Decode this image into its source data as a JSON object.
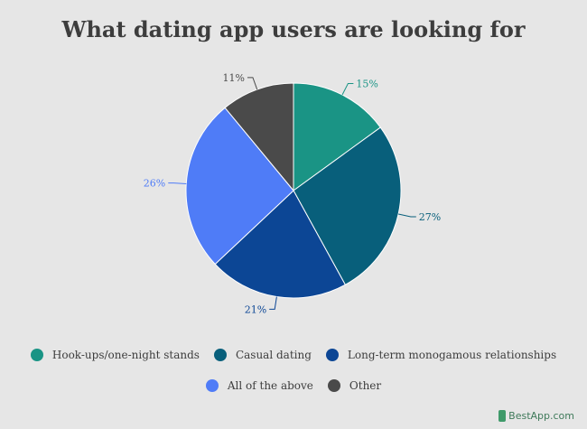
{
  "chart_data": {
    "type": "pie",
    "title": "What dating app users are looking for",
    "slices": [
      {
        "label": "Hook-ups/one-night stands",
        "value": 15,
        "display": "15%",
        "color": "#1a9485"
      },
      {
        "label": "Casual dating",
        "value": 27,
        "display": "27%",
        "color": "#085f7b"
      },
      {
        "label": "Long-term monogamous relationships",
        "value": 21,
        "display": "21%",
        "color": "#0c4695"
      },
      {
        "label": "All of the above",
        "value": 26,
        "display": "26%",
        "color": "#4f7cf7"
      },
      {
        "label": "Other",
        "value": 11,
        "display": "11%",
        "color": "#4a4a4a"
      }
    ],
    "legend_placement": "bottom"
  },
  "brand": {
    "text": "BestApp.com"
  }
}
